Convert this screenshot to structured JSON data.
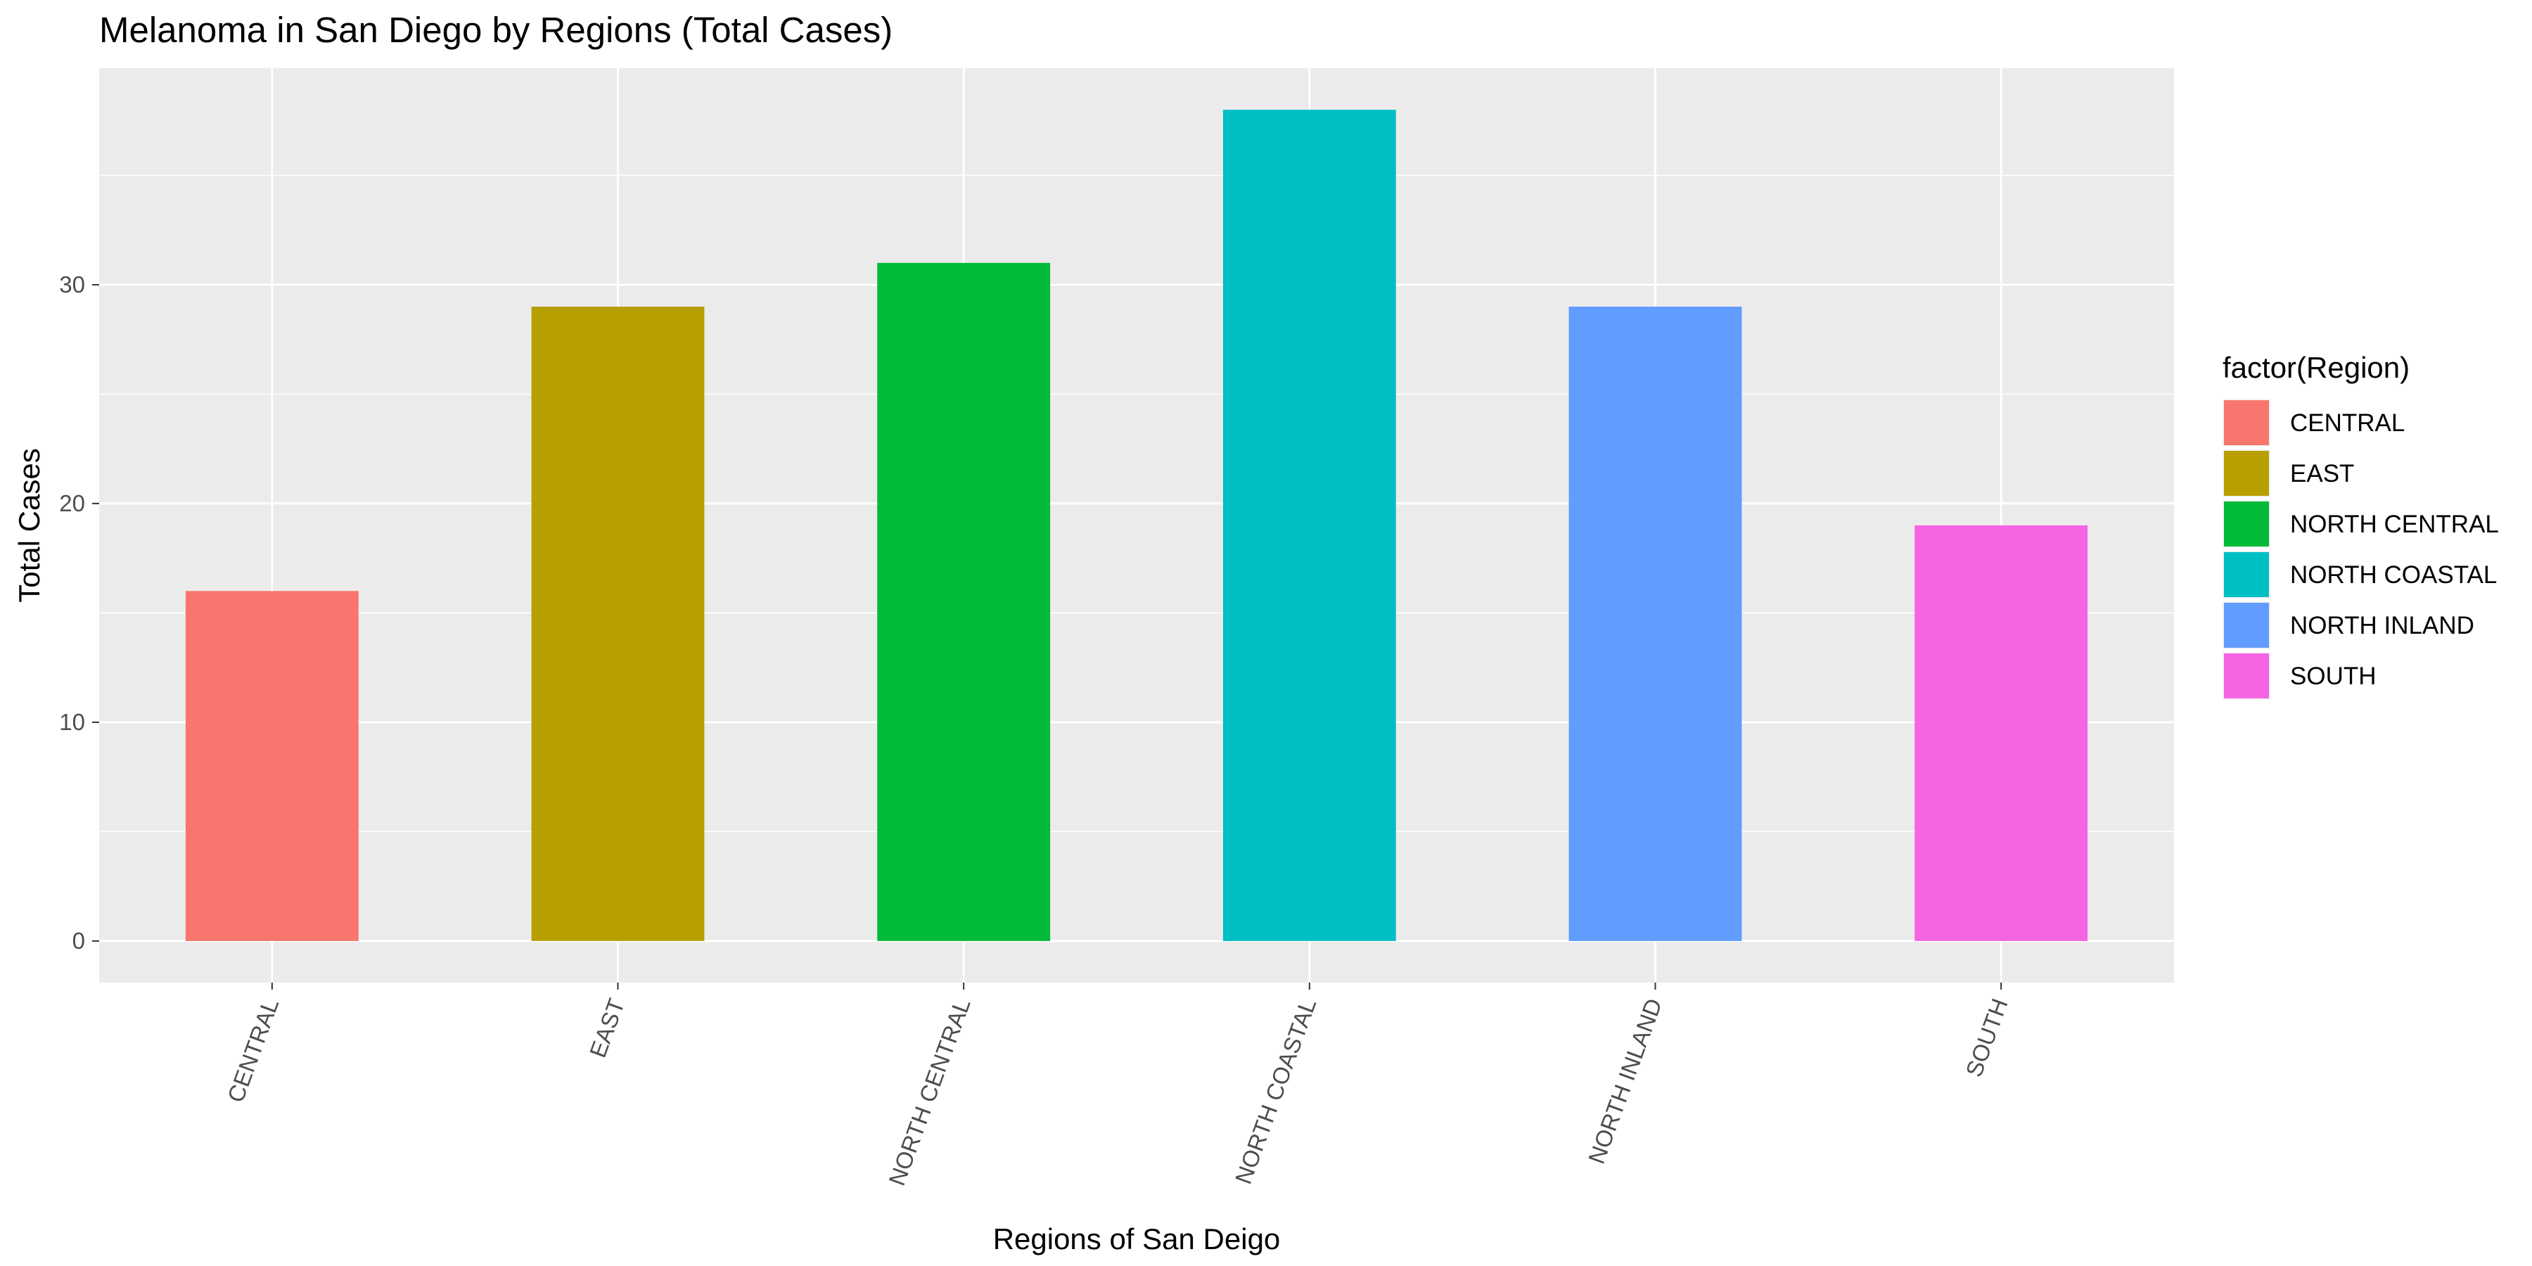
{
  "chart_data": {
    "type": "bar",
    "title": "Melanoma in San Diego by Regions (Total Cases)",
    "xlabel": "Regions of San Deigo",
    "ylabel": "Total Cases",
    "categories": [
      "CENTRAL",
      "EAST",
      "NORTH CENTRAL",
      "NORTH COASTAL",
      "NORTH INLAND",
      "SOUTH"
    ],
    "values": [
      16,
      29,
      31,
      38,
      29,
      19
    ],
    "colors": [
      "#F8766D",
      "#B79F00",
      "#00BA38",
      "#00BFC4",
      "#619CFF",
      "#F564E3"
    ],
    "ylim": [
      -1.9,
      39.9
    ],
    "yticks": [
      0,
      10,
      20,
      30
    ],
    "grid": true,
    "panel_background": "#EBEBEB",
    "legend": {
      "title": "factor(Region)",
      "placement": "right",
      "entries": [
        "CENTRAL",
        "EAST",
        "NORTH CENTRAL",
        "NORTH COASTAL",
        "NORTH INLAND",
        "SOUTH"
      ]
    }
  }
}
